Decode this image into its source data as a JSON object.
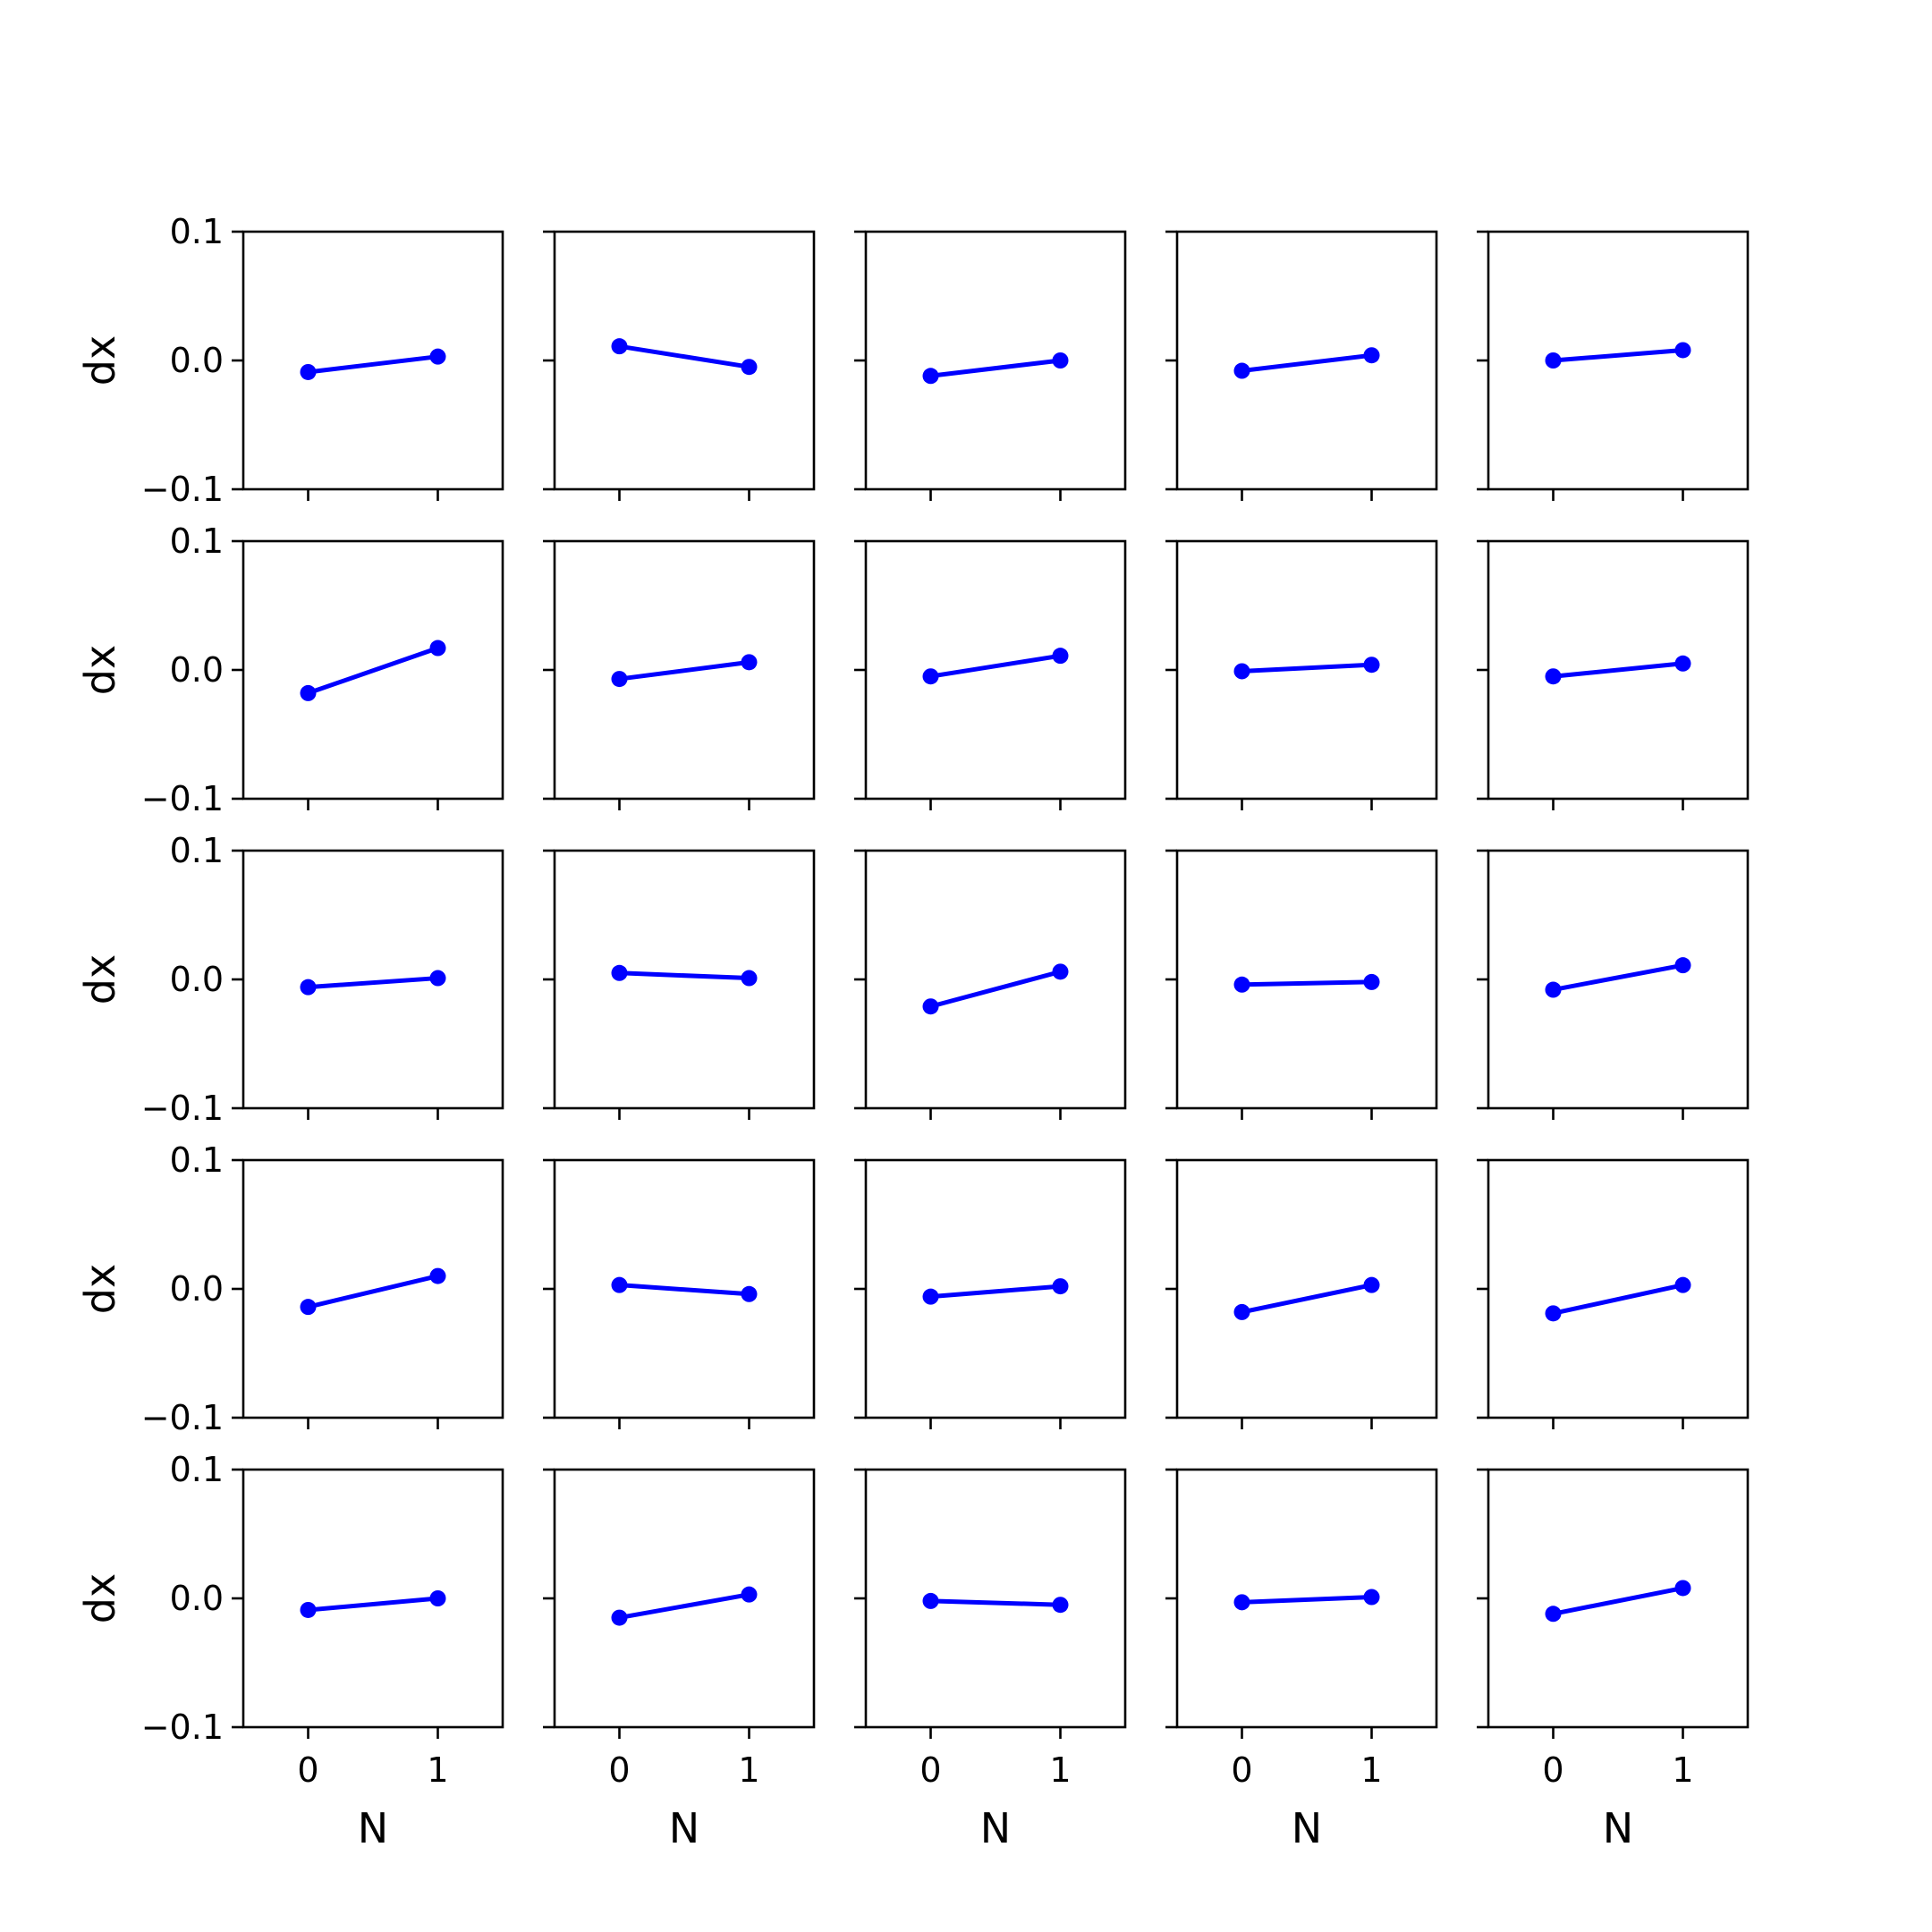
{
  "chart_data": {
    "type": "line",
    "layout": "5x5 small multiples",
    "xlabel": "N",
    "ylabel": "dx",
    "x_ticks": [
      "0",
      "1"
    ],
    "y_ticks": [
      "0.1",
      "0.0",
      "−0.1"
    ],
    "xlim": [
      -0.5,
      1.5
    ],
    "ylim": [
      -0.1,
      0.1
    ],
    "grid": false,
    "line_color": "#0000ff",
    "marker": "circle",
    "panels": [
      [
        {
          "x": [
            0,
            1
          ],
          "y": [
            -0.009,
            0.003
          ]
        },
        {
          "x": [
            0,
            1
          ],
          "y": [
            0.011,
            -0.005
          ]
        },
        {
          "x": [
            0,
            1
          ],
          "y": [
            -0.012,
            0.0
          ]
        },
        {
          "x": [
            0,
            1
          ],
          "y": [
            -0.008,
            0.004
          ]
        },
        {
          "x": [
            0,
            1
          ],
          "y": [
            0.0,
            0.008
          ]
        }
      ],
      [
        {
          "x": [
            0,
            1
          ],
          "y": [
            -0.018,
            0.017
          ]
        },
        {
          "x": [
            0,
            1
          ],
          "y": [
            -0.007,
            0.006
          ]
        },
        {
          "x": [
            0,
            1
          ],
          "y": [
            -0.005,
            0.011
          ]
        },
        {
          "x": [
            0,
            1
          ],
          "y": [
            -0.001,
            0.004
          ]
        },
        {
          "x": [
            0,
            1
          ],
          "y": [
            -0.005,
            0.005
          ]
        }
      ],
      [
        {
          "x": [
            0,
            1
          ],
          "y": [
            -0.006,
            0.001
          ]
        },
        {
          "x": [
            0,
            1
          ],
          "y": [
            0.005,
            0.001
          ]
        },
        {
          "x": [
            0,
            1
          ],
          "y": [
            -0.021,
            0.006
          ]
        },
        {
          "x": [
            0,
            1
          ],
          "y": [
            -0.004,
            -0.002
          ]
        },
        {
          "x": [
            0,
            1
          ],
          "y": [
            -0.008,
            0.011
          ]
        }
      ],
      [
        {
          "x": [
            0,
            1
          ],
          "y": [
            -0.014,
            0.01
          ]
        },
        {
          "x": [
            0,
            1
          ],
          "y": [
            0.003,
            -0.004
          ]
        },
        {
          "x": [
            0,
            1
          ],
          "y": [
            -0.006,
            0.002
          ]
        },
        {
          "x": [
            0,
            1
          ],
          "y": [
            -0.018,
            0.003
          ]
        },
        {
          "x": [
            0,
            1
          ],
          "y": [
            -0.019,
            0.003
          ]
        }
      ],
      [
        {
          "x": [
            0,
            1
          ],
          "y": [
            -0.009,
            0.0
          ]
        },
        {
          "x": [
            0,
            1
          ],
          "y": [
            -0.015,
            0.003
          ]
        },
        {
          "x": [
            0,
            1
          ],
          "y": [
            -0.002,
            -0.005
          ]
        },
        {
          "x": [
            0,
            1
          ],
          "y": [
            -0.003,
            0.001
          ]
        },
        {
          "x": [
            0,
            1
          ],
          "y": [
            -0.012,
            0.008
          ]
        }
      ]
    ]
  }
}
